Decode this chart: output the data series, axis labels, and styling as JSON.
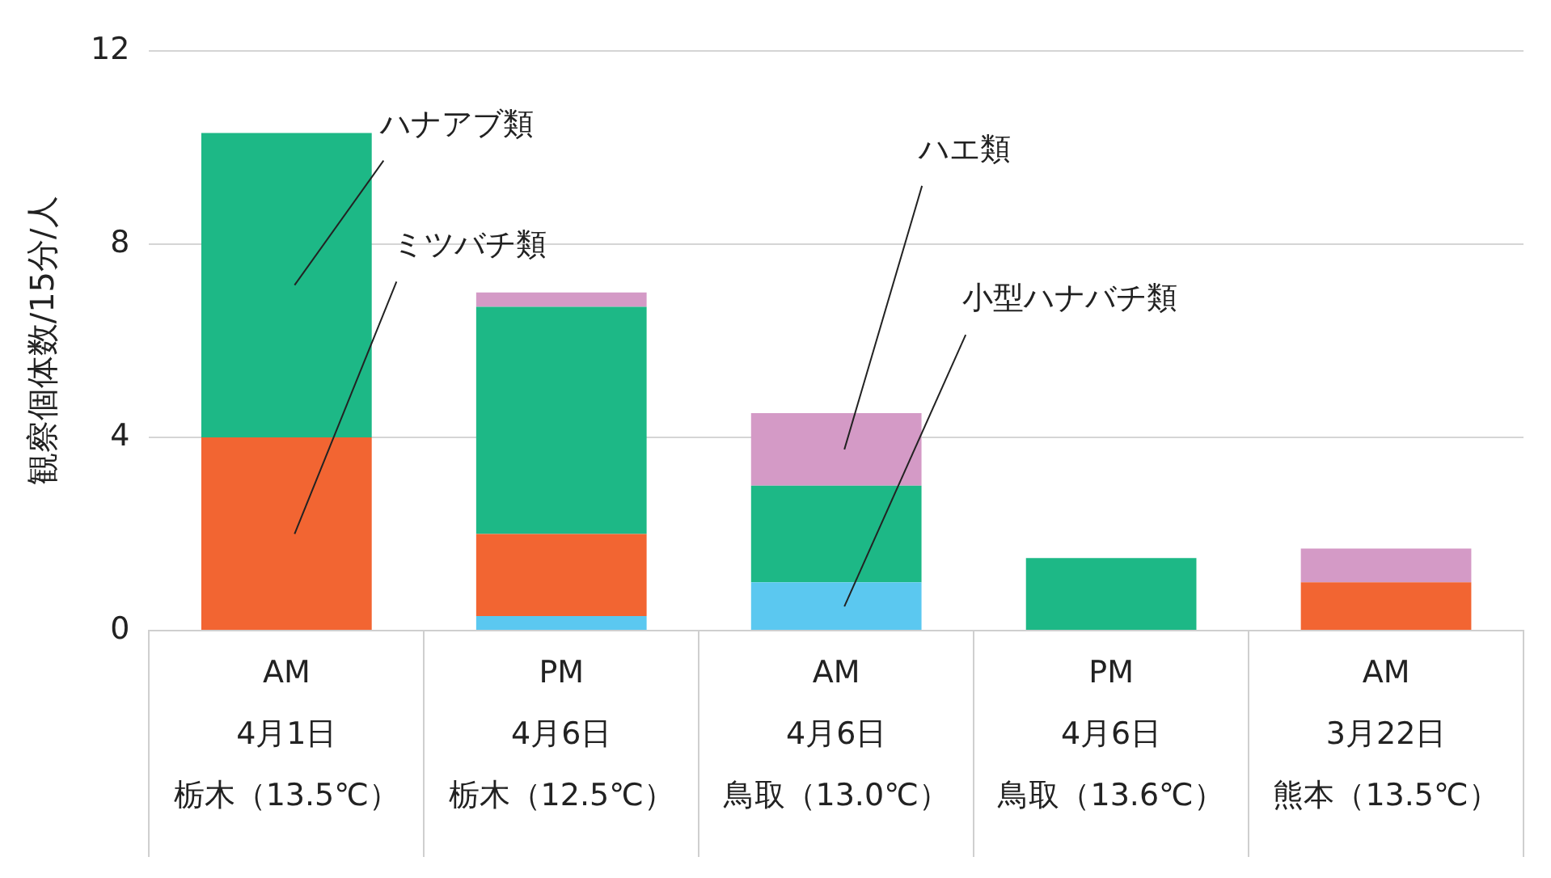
{
  "chart_data": {
    "type": "bar",
    "stacked": true,
    "ylabel": "観察個体数/15分/人",
    "categories": [
      "AM 4月1日栃木（13.5℃）",
      "PM 4月6日栃木（12.5℃）",
      "AM 4月6日鳥取（13.0℃）",
      "PM 4月6日鳥取（13.6℃）",
      "AM 3月22日熊本（13.5℃）"
    ],
    "series": [
      {
        "name": "小型ハナバチ類",
        "color": "#5bc8f0",
        "values": [
          null,
          0.3,
          1,
          null,
          null
        ]
      },
      {
        "name": "ミツバチ類",
        "color": "#f26532",
        "values": [
          4,
          1.7,
          null,
          null,
          1
        ]
      },
      {
        "name": "ハナアブ類",
        "color": "#1db886",
        "values": [
          6.3,
          4.7,
          2,
          1.5,
          null
        ]
      },
      {
        "name": "ハエ類",
        "color": "#d49ac6",
        "values": [
          null,
          0.3,
          1.5,
          null,
          0.7
        ]
      }
    ],
    "ylim": [
      0,
      12
    ],
    "yticks": [
      0,
      4,
      8,
      12
    ],
    "grid": "y",
    "legend": false
  }
}
